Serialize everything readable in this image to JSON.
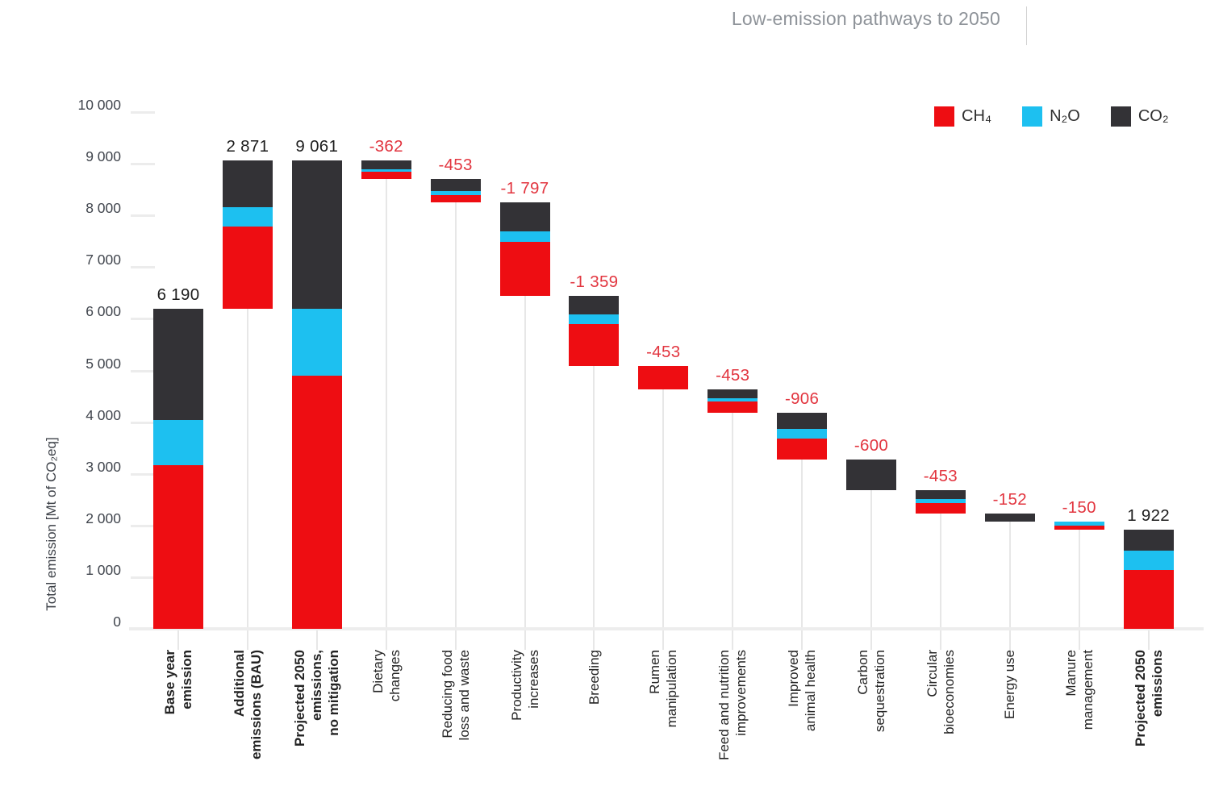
{
  "title": "Low-emission pathways to 2050",
  "colors": {
    "ch4": "#ee0d12",
    "n2o": "#1dc0f0",
    "co2": "#333236",
    "negative_label": "#e2353f",
    "positive_label": "#1d1d1d",
    "title_gray": "#8e9399",
    "axis_text": "#40454d",
    "grid": "#ececec"
  },
  "chart_data": {
    "type": "waterfall-stacked-bar",
    "title": "Low-emission pathways to 2050",
    "unit": "Mt of CO₂eq",
    "legend_position": "top-right",
    "series_order": [
      "ch4",
      "n2o",
      "co2"
    ],
    "legend": [
      {
        "key": "ch4",
        "label": "CH₄",
        "color": "#ee0d12"
      },
      {
        "key": "n2o",
        "label": "N₂O",
        "color": "#1dc0f0"
      },
      {
        "key": "co2",
        "label": "CO₂",
        "color": "#333236"
      }
    ],
    "y_axis": {
      "title": "Total emission [Mt of CO₂eq]",
      "min": 0,
      "max": 10000,
      "step": 1000,
      "tick_labels": [
        "10 000",
        "9 000",
        "8 000",
        "7 000",
        "6 000",
        "5 000",
        "4 000",
        "3 000",
        "2 000",
        "1 000",
        "0"
      ]
    },
    "categories": [
      {
        "label": "Base year\nemission",
        "bold": true,
        "start": 0,
        "end": 6190,
        "value": 6190,
        "value_label": "6 190",
        "segments": {
          "ch4": 3170,
          "n2o": 875,
          "co2": 2145
        }
      },
      {
        "label": "Additional\nemissions (BAU)",
        "bold": true,
        "start": 6190,
        "end": 9061,
        "value": 2871,
        "value_label": "2 871",
        "segments": {
          "ch4": 1590,
          "n2o": 375,
          "co2": 906
        }
      },
      {
        "label": "Projected 2050\nemissions,\nno mitigation",
        "bold": true,
        "start": 0,
        "end": 9061,
        "value": 9061,
        "value_label": "9 061",
        "segments": {
          "ch4": 4905,
          "n2o": 1290,
          "co2": 2866
        }
      },
      {
        "label": "Dietary\nchanges",
        "bold": false,
        "start": 8699,
        "end": 9061,
        "value": -362,
        "value_label": "-362",
        "segments": {
          "ch4": 150,
          "n2o": 50,
          "co2": 162
        }
      },
      {
        "label": "Reducing food\nloss and waste",
        "bold": false,
        "start": 8246,
        "end": 8699,
        "value": -453,
        "value_label": "-453",
        "segments": {
          "ch4": 145,
          "n2o": 83,
          "co2": 225
        }
      },
      {
        "label": "Productivity\nincreases",
        "bold": false,
        "start": 6449,
        "end": 8246,
        "value": -1797,
        "value_label": "-1 797",
        "segments": {
          "ch4": 1045,
          "n2o": 200,
          "co2": 552
        }
      },
      {
        "label": "Breeding",
        "bold": false,
        "start": 5090,
        "end": 6449,
        "value": -1359,
        "value_label": "-1 359",
        "segments": {
          "ch4": 810,
          "n2o": 187,
          "co2": 362
        }
      },
      {
        "label": "Rumen\nmanipulation",
        "bold": false,
        "start": 4637,
        "end": 5090,
        "value": -453,
        "value_label": "-453",
        "segments": {
          "ch4": 453,
          "n2o": 0,
          "co2": 0
        }
      },
      {
        "label": "Feed and nutrition\nimprovements",
        "bold": false,
        "start": 4184,
        "end": 4637,
        "value": -453,
        "value_label": "-453",
        "segments": {
          "ch4": 215,
          "n2o": 68,
          "co2": 170
        }
      },
      {
        "label": "Improved\nanimal health",
        "bold": false,
        "start": 3278,
        "end": 4184,
        "value": -906,
        "value_label": "-906",
        "segments": {
          "ch4": 410,
          "n2o": 186,
          "co2": 310
        }
      },
      {
        "label": "Carbon\nsequestration",
        "bold": false,
        "start": 2678,
        "end": 3278,
        "value": -600,
        "value_label": "-600",
        "segments": {
          "ch4": 0,
          "n2o": 0,
          "co2": 600
        }
      },
      {
        "label": "Circular\nbioeconomies",
        "bold": false,
        "start": 2225,
        "end": 2678,
        "value": -453,
        "value_label": "-453",
        "segments": {
          "ch4": 215,
          "n2o": 72,
          "co2": 166
        }
      },
      {
        "label": "Energy use",
        "bold": false,
        "start": 2073,
        "end": 2225,
        "value": -152,
        "value_label": "-152",
        "segments": {
          "ch4": 0,
          "n2o": 0,
          "co2": 152
        }
      },
      {
        "label": "Manure\nmanagement",
        "bold": false,
        "start": 1923,
        "end": 2073,
        "value": -150,
        "value_label": "-150",
        "segments": {
          "ch4": 75,
          "n2o": 75,
          "co2": 0
        }
      },
      {
        "label": "Projected 2050\nemissions",
        "bold": true,
        "start": 0,
        "end": 1922,
        "value": 1922,
        "value_label": "1 922",
        "segments": {
          "ch4": 1140,
          "n2o": 375,
          "co2": 407
        }
      }
    ]
  }
}
